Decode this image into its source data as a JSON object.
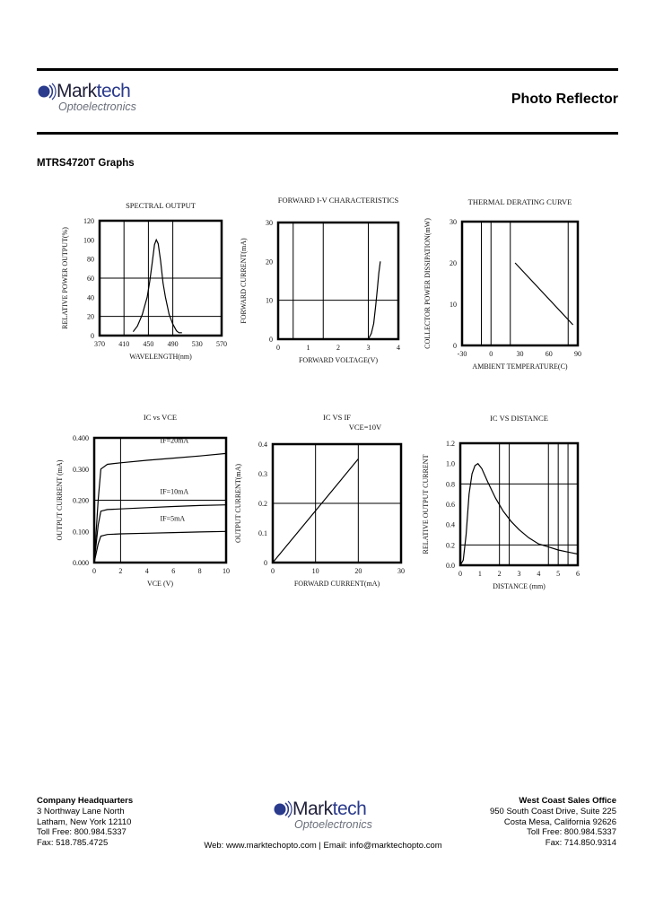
{
  "header": {
    "logo": {
      "word_part1": "Mark",
      "word_part2": "tech",
      "subtitle": "Optoelectronics"
    },
    "doc_type": "Photo Reflector"
  },
  "section_title": "MTRS4720T Graphs",
  "colors": {
    "logo_dark": "#1f1f3a",
    "logo_blue": "#2a3a8c",
    "logo_gray": "#6a6f7a",
    "rule": "#000000"
  },
  "chart_data": [
    {
      "id": "spectral",
      "type": "line",
      "title": "SPECTRAL OUTPUT",
      "xlabel": "WAVELENGTH(nm)",
      "ylabel": "RELATIVE POWER OUTPUT(%)",
      "xlim": [
        370,
        570
      ],
      "ylim": [
        0,
        120
      ],
      "xticks": [
        "370",
        "410",
        "450",
        "490",
        "530",
        "570"
      ],
      "yticks": [
        "0",
        "20",
        "40",
        "60",
        "80",
        "100",
        "120"
      ],
      "x": [
        425,
        432,
        440,
        448,
        452,
        456,
        460,
        463,
        466,
        470,
        474,
        478,
        484,
        490,
        496,
        500,
        505
      ],
      "values": [
        4,
        10,
        22,
        40,
        56,
        75,
        95,
        100,
        96,
        78,
        55,
        40,
        22,
        12,
        5,
        3,
        3
      ]
    },
    {
      "id": "forward_iv",
      "type": "line",
      "title": "FORWARD I-V CHARACTERISTICS",
      "xlabel": "FORWARD VOLTAGE(V)",
      "ylabel": "FORWARD CURRENT(mA)",
      "xlim": [
        0,
        4
      ],
      "ylim": [
        0,
        30
      ],
      "xticks": [
        "0",
        "1",
        "2",
        "3",
        "4"
      ],
      "yticks": [
        "0",
        "10",
        "20",
        "30"
      ],
      "x": [
        3.0,
        3.1,
        3.18,
        3.25,
        3.3,
        3.35,
        3.4
      ],
      "values": [
        0,
        1.5,
        4,
        9,
        13,
        17,
        20
      ]
    },
    {
      "id": "thermal_derating",
      "type": "line",
      "title": "THERMAL DERATING CURVE",
      "xlabel": "AMBIENT TEMPERATURE(C)",
      "ylabel": "COLLECTOR POWER DISSIPATION(mW)",
      "xlim": [
        -30,
        90
      ],
      "ylim": [
        0,
        30
      ],
      "xticks": [
        "-30",
        "0",
        "30",
        "60",
        "90"
      ],
      "yticks": [
        "0",
        "10",
        "20",
        "30"
      ],
      "x": [
        25,
        85
      ],
      "values": [
        20,
        5
      ]
    },
    {
      "id": "ic_vs_vce",
      "type": "line",
      "title": "IC vs VCE",
      "xlabel": "VCE (V)",
      "ylabel": "OUTPUT CURRENT (mA)",
      "xlim": [
        0,
        10
      ],
      "ylim": [
        0,
        0.4
      ],
      "xticks": [
        "0",
        "2",
        "4",
        "6",
        "8",
        "10"
      ],
      "yticks": [
        "0.000",
        "0.100",
        "0.200",
        "0.300",
        "0.400"
      ],
      "series": [
        {
          "name": "IF=20mA",
          "x": [
            0,
            0.3,
            0.5,
            1,
            2,
            4,
            6,
            8,
            10
          ],
          "values": [
            0,
            0.2,
            0.3,
            0.315,
            0.32,
            0.328,
            0.335,
            0.342,
            0.35
          ]
        },
        {
          "name": "IF=10mA",
          "x": [
            0,
            0.3,
            0.5,
            1,
            2,
            4,
            6,
            8,
            10
          ],
          "values": [
            0,
            0.12,
            0.165,
            0.17,
            0.172,
            0.176,
            0.18,
            0.183,
            0.185
          ]
        },
        {
          "name": "IF=5mA",
          "x": [
            0,
            0.3,
            0.5,
            1,
            2,
            4,
            6,
            8,
            10
          ],
          "values": [
            0,
            0.06,
            0.085,
            0.09,
            0.092,
            0.094,
            0.096,
            0.098,
            0.1
          ]
        }
      ]
    },
    {
      "id": "ic_vs_if",
      "type": "line",
      "title": "IC VS IF",
      "subtitle": "VCE=10V",
      "xlabel": "FORWARD CURRENT(mA)",
      "ylabel": "OUTPUT CURRENT(mA)",
      "xlim": [
        0,
        30
      ],
      "ylim": [
        0,
        0.4
      ],
      "xticks": [
        "0",
        "10",
        "20",
        "30"
      ],
      "yticks": [
        "0",
        "0.1",
        "0.2",
        "0.3",
        "0.4"
      ],
      "x": [
        0,
        10,
        20
      ],
      "values": [
        0,
        0.175,
        0.35
      ]
    },
    {
      "id": "ic_vs_distance",
      "type": "line",
      "title": "IC VS DISTANCE",
      "xlabel": "DISTANCE (mm)",
      "ylabel": "RELATIVE OUTPUT CURRENT",
      "xlim": [
        0,
        6
      ],
      "ylim": [
        0,
        1.2
      ],
      "xticks": [
        "0",
        "1",
        "2",
        "3",
        "4",
        "5",
        "6"
      ],
      "yticks": [
        "0.0",
        "0.2",
        "0.4",
        "0.6",
        "0.8",
        "1.0",
        "1.2"
      ],
      "x": [
        0,
        0.15,
        0.3,
        0.45,
        0.6,
        0.75,
        0.9,
        1.1,
        1.4,
        1.8,
        2.2,
        2.6,
        3.0,
        3.5,
        4.0,
        4.5,
        5.0,
        5.5,
        6.0
      ],
      "values": [
        0.0,
        0.05,
        0.3,
        0.7,
        0.9,
        0.98,
        1.0,
        0.95,
        0.82,
        0.66,
        0.53,
        0.43,
        0.35,
        0.27,
        0.21,
        0.18,
        0.15,
        0.13,
        0.11
      ]
    }
  ],
  "footer": {
    "left": {
      "heading": "Company Headquarters",
      "line1": "3 Northway Lane North",
      "line2": "Latham, New York 12110",
      "line3": "Toll Free: 800.984.5337",
      "line4": "Fax: 518.785.4725"
    },
    "right": {
      "heading": "West Coast Sales Office",
      "line1": "950 South Coast Drive, Suite 225",
      "line2": "Costa Mesa, California 92626",
      "line3": "Toll Free: 800.984.5337",
      "line4": "Fax: 714.850.9314"
    },
    "web_line": "Web: www.marktechopto.com | Email: info@marktechopto.com"
  }
}
